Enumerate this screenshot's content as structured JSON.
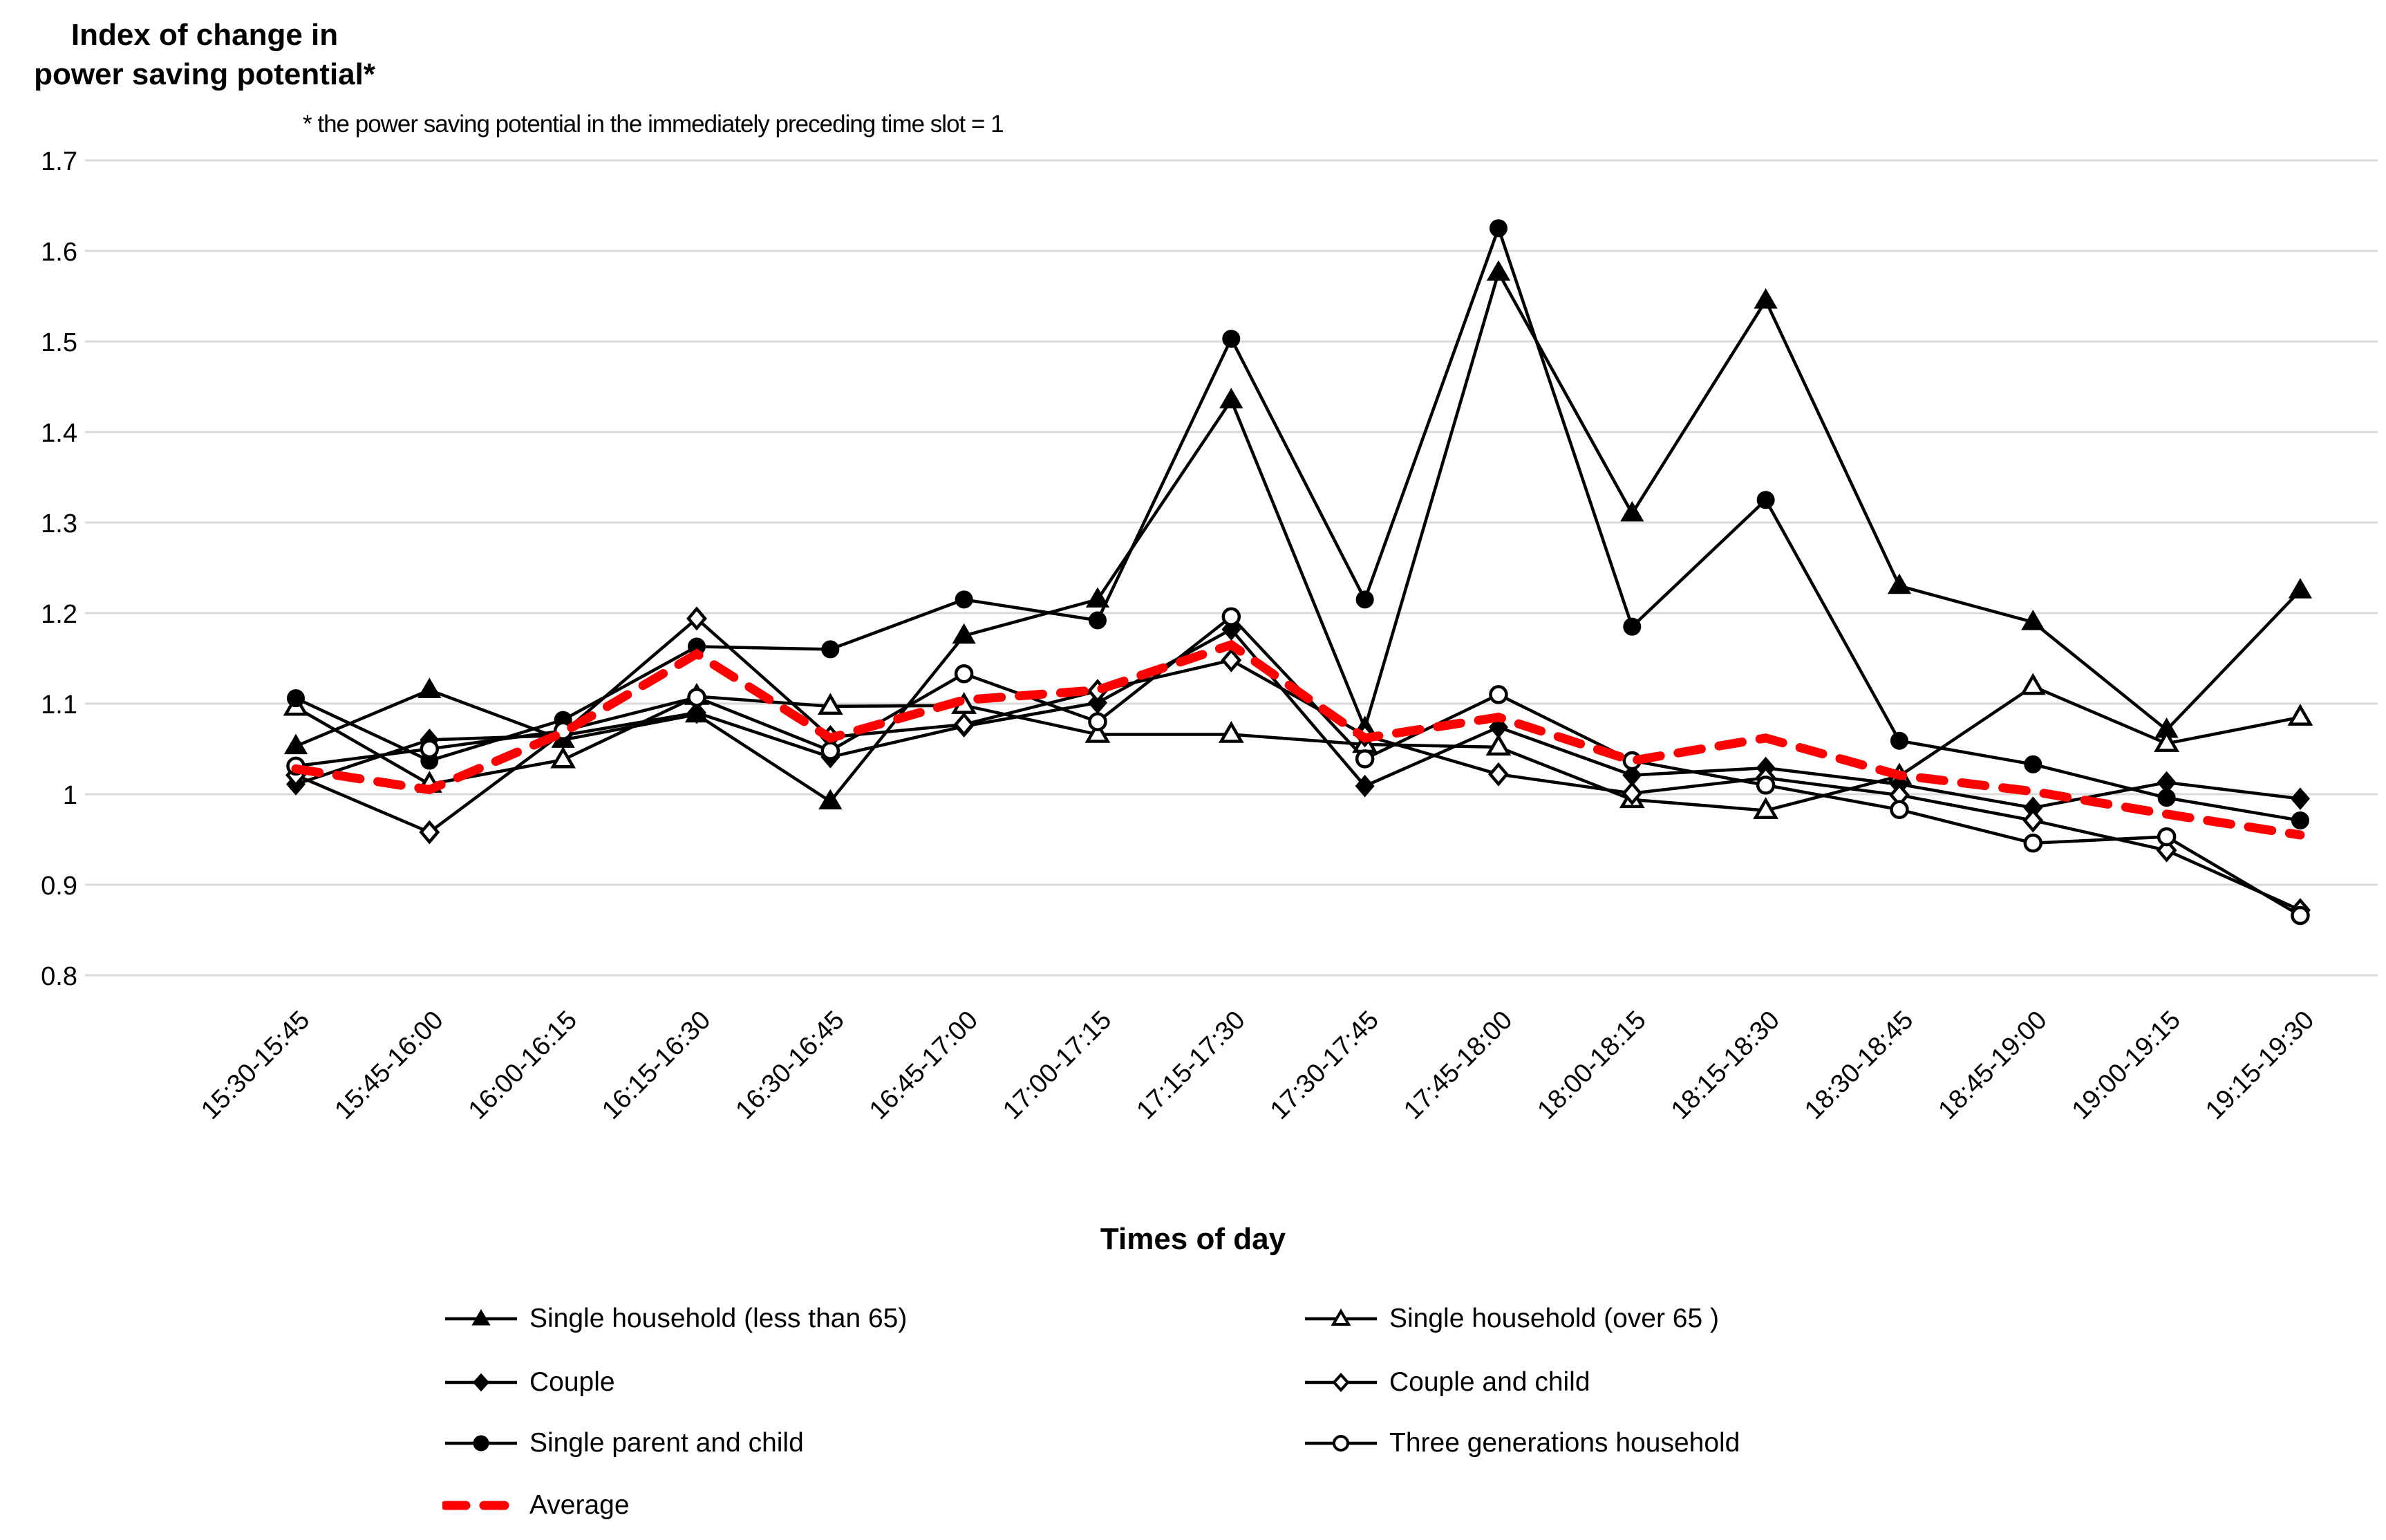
{
  "page": {
    "background": "#FFFFFF"
  },
  "chart": {
    "y_axis_title": "Index of change in\npower saving potential*",
    "footnote": "* the power saving potential in the immediately preceding time slot = 1",
    "x_axis_title": "Times of day",
    "colors": {
      "series_black": "#000000",
      "average_red": "#FF0000",
      "gridline": "#D9D9D9"
    }
  },
  "chart_data": {
    "type": "line",
    "title": "Index of change in power saving potential*",
    "xlabel": "Times of day",
    "ylabel": "Index of change in power saving potential*",
    "ylim": [
      0.8,
      1.7
    ],
    "grid": true,
    "legend_position": "bottom",
    "y_tick_values": [
      1.7,
      1.6,
      1.5,
      1.4,
      1.3,
      1.2,
      1.1,
      1.0,
      0.9,
      0.8
    ],
    "y_tick_labels": [
      "1.7",
      "1.6",
      "1.5",
      "1.4",
      "1.3",
      "1.2",
      "1.1",
      "1",
      "0.9",
      "0.8"
    ],
    "categories": [
      "15:30-15:45",
      "15:45-16:00",
      "16:00-16:15",
      "16:15-16:30",
      "16:30-16:45",
      "16:45-17:00",
      "17:00-17:15",
      "17:15-17:30",
      "17:30-17:45",
      "17:45-18:00",
      "18:00-18:15",
      "18:15-18:30",
      "18:30-18:45",
      "18:45-19:00",
      "19:00-19:15",
      "19:15-19:30"
    ],
    "series": [
      {
        "name": "Single household (less than 65)",
        "marker": "triangle-filled",
        "line": "solid-black",
        "values": [
          1.053,
          1.115,
          1.06,
          1.088,
          0.992,
          1.175,
          1.215,
          1.435,
          1.073,
          1.576,
          1.31,
          1.545,
          1.23,
          1.19,
          1.071,
          1.225
        ]
      },
      {
        "name": "Single household (over 65 )",
        "marker": "triangle-open",
        "line": "solid-black",
        "values": [
          1.096,
          1.011,
          1.038,
          1.108,
          1.097,
          1.098,
          1.066,
          1.066,
          1.055,
          1.052,
          0.994,
          0.982,
          1.02,
          1.119,
          1.056,
          1.085
        ]
      },
      {
        "name": "Couple",
        "marker": "diamond-filled",
        "line": "solid-black",
        "values": [
          1.011,
          1.06,
          1.065,
          1.09,
          1.041,
          1.075,
          1.101,
          1.182,
          1.009,
          1.074,
          1.021,
          1.029,
          1.011,
          0.985,
          1.013,
          0.995
        ]
      },
      {
        "name": "Couple and child",
        "marker": "diamond-open",
        "line": "solid-black",
        "values": [
          1.021,
          0.958,
          1.068,
          1.194,
          1.063,
          1.077,
          1.114,
          1.148,
          1.065,
          1.022,
          1.001,
          1.018,
          0.999,
          0.971,
          0.938,
          0.872
        ]
      },
      {
        "name": "Single parent and child",
        "marker": "circle-filled",
        "line": "solid-black",
        "values": [
          1.106,
          1.037,
          1.082,
          1.163,
          1.16,
          1.215,
          1.192,
          1.503,
          1.215,
          1.625,
          1.185,
          1.325,
          1.059,
          1.033,
          0.996,
          0.971
        ]
      },
      {
        "name": "Three generations household",
        "marker": "circle-open",
        "line": "solid-black",
        "values": [
          1.031,
          1.05,
          1.07,
          1.107,
          1.048,
          1.133,
          1.08,
          1.196,
          1.039,
          1.11,
          1.037,
          1.01,
          0.983,
          0.946,
          0.953,
          0.866
        ]
      },
      {
        "name": "Average",
        "marker": "none",
        "line": "dashed-red",
        "values": [
          1.028,
          1.005,
          1.068,
          1.155,
          1.062,
          1.104,
          1.115,
          1.165,
          1.062,
          1.085,
          1.037,
          1.062,
          1.021,
          1.003,
          0.978,
          0.955
        ]
      }
    ]
  },
  "legend": {
    "items": [
      {
        "label": "Single household (less than 65)",
        "marker": "triangle-filled",
        "line": "solid-black",
        "column": 0,
        "row": 0
      },
      {
        "label": "Couple",
        "marker": "diamond-filled",
        "line": "solid-black",
        "column": 0,
        "row": 1
      },
      {
        "label": "Single parent and child",
        "marker": "circle-filled",
        "line": "solid-black",
        "column": 0,
        "row": 2
      },
      {
        "label": "Average",
        "marker": "none",
        "line": "dashed-red",
        "column": 0,
        "row": 3
      },
      {
        "label": "Single household (over 65 )",
        "marker": "triangle-open",
        "line": "solid-black",
        "column": 1,
        "row": 0
      },
      {
        "label": "Couple and child",
        "marker": "diamond-open",
        "line": "solid-black",
        "column": 1,
        "row": 1
      },
      {
        "label": "Three generations household",
        "marker": "circle-open",
        "line": "solid-black",
        "column": 1,
        "row": 2
      }
    ]
  }
}
